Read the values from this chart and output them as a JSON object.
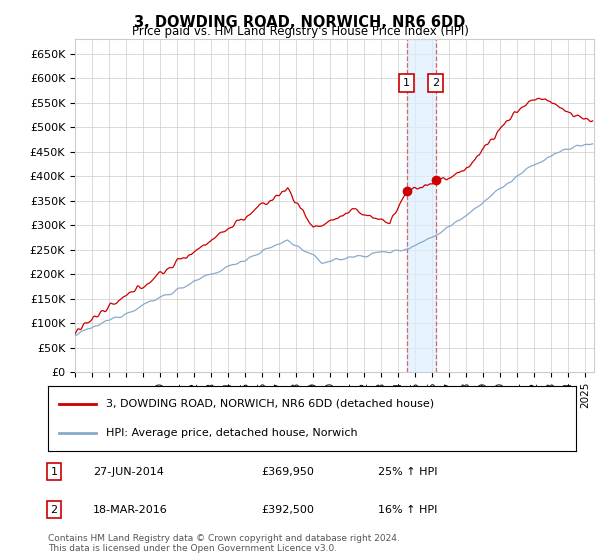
{
  "title": "3, DOWDING ROAD, NORWICH, NR6 6DD",
  "subtitle": "Price paid vs. HM Land Registry's House Price Index (HPI)",
  "ylabel_ticks": [
    "£0",
    "£50K",
    "£100K",
    "£150K",
    "£200K",
    "£250K",
    "£300K",
    "£350K",
    "£400K",
    "£450K",
    "£500K",
    "£550K",
    "£600K",
    "£650K"
  ],
  "ytick_values": [
    0,
    50000,
    100000,
    150000,
    200000,
    250000,
    300000,
    350000,
    400000,
    450000,
    500000,
    550000,
    600000,
    650000
  ],
  "ylim": [
    0,
    680000
  ],
  "xlim_start": 1995.0,
  "xlim_end": 2025.5,
  "legend_line1": "3, DOWDING ROAD, NORWICH, NR6 6DD (detached house)",
  "legend_line2": "HPI: Average price, detached house, Norwich",
  "transaction1_label": "1",
  "transaction1_date": "27-JUN-2014",
  "transaction1_price": "£369,950",
  "transaction1_hpi": "25% ↑ HPI",
  "transaction1_x": 2014.49,
  "transaction1_y": 369950,
  "transaction2_label": "2",
  "transaction2_date": "18-MAR-2016",
  "transaction2_price": "£392,500",
  "transaction2_hpi": "16% ↑ HPI",
  "transaction2_x": 2016.21,
  "transaction2_y": 392500,
  "footer": "Contains HM Land Registry data © Crown copyright and database right 2024.\nThis data is licensed under the Open Government Licence v3.0.",
  "line_color_red": "#cc0000",
  "line_color_blue": "#88aacc",
  "bg_color": "#ffffff",
  "grid_color": "#cccccc",
  "shade_color": "#ddeeff"
}
